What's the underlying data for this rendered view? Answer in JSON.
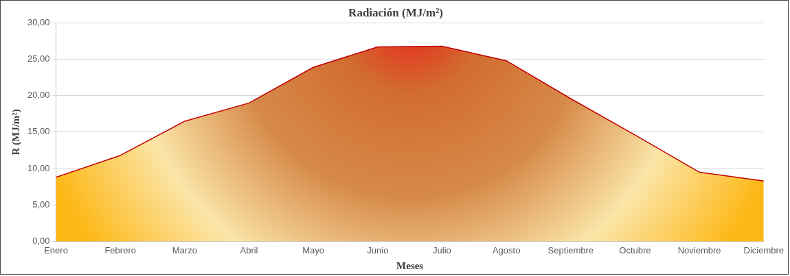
{
  "chart_data": {
    "type": "area",
    "title": "Radiación (MJ/m²)",
    "xlabel": "Meses",
    "ylabel": "R (MJ/m²)",
    "categories": [
      "Enero",
      "Febrero",
      "Marzo",
      "Abril",
      "Mayo",
      "Junio",
      "Julio",
      "Agosto",
      "Septiembre",
      "Octubre",
      "Noviembre",
      "Diciembre"
    ],
    "series": [
      {
        "color": "#c00000",
        "values": [
          8.8,
          11.8,
          16.5,
          19.0,
          23.9,
          26.7,
          26.8,
          24.8,
          19.6,
          14.6,
          9.5,
          8.3
        ]
      }
    ],
    "ylim": [
      0,
      30
    ],
    "yticks": [
      {
        "value": 0,
        "label": "0,00"
      },
      {
        "value": 5,
        "label": "5,00"
      },
      {
        "value": 10,
        "label": "10,00"
      },
      {
        "value": 15,
        "label": "15,00"
      },
      {
        "value": 20,
        "label": "20,00"
      },
      {
        "value": 25,
        "label": "25,00"
      },
      {
        "value": 30,
        "label": "30,00"
      }
    ],
    "grid": "y",
    "legend": false,
    "marker": "none"
  }
}
